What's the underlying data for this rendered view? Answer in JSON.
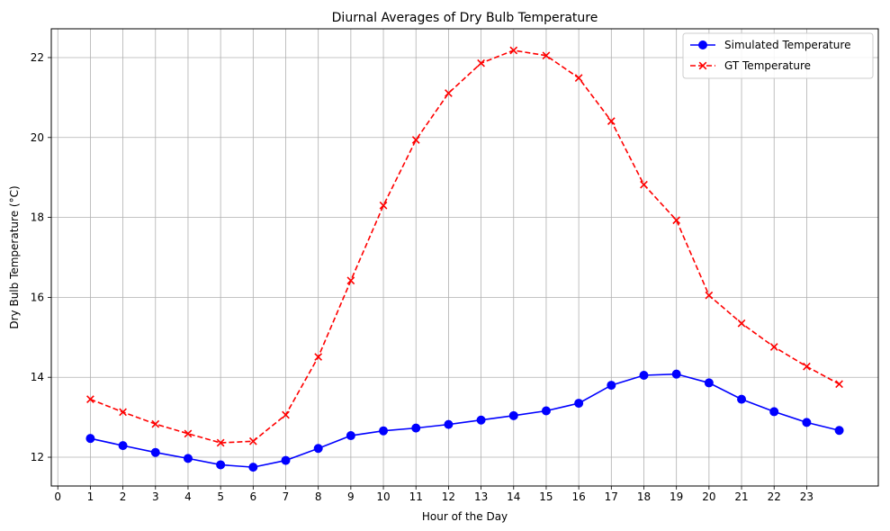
{
  "chart_data": {
    "type": "line",
    "title": "Diurnal Averages of Dry Bulb Temperature",
    "xlabel": "Hour of the Day",
    "ylabel": "Dry Bulb Temperature (°C)",
    "xlim": [
      -0.2,
      25.2
    ],
    "ylim": [
      11.28,
      22.72
    ],
    "xticks": [
      0,
      1,
      2,
      3,
      4,
      5,
      6,
      7,
      8,
      9,
      10,
      11,
      12,
      13,
      14,
      15,
      16,
      17,
      18,
      19,
      20,
      21,
      22,
      23
    ],
    "yticks": [
      12,
      14,
      16,
      18,
      20,
      22
    ],
    "grid": true,
    "legend_position": "top-right",
    "x": [
      1,
      2,
      3,
      4,
      5,
      6,
      7,
      8,
      9,
      10,
      11,
      12,
      13,
      14,
      15,
      16,
      17,
      18,
      19,
      20,
      21,
      22,
      23,
      24
    ],
    "series": [
      {
        "name": "Simulated Temperature",
        "color": "#0000ff",
        "linestyle": "solid",
        "marker": "circle",
        "values": [
          12.47,
          12.29,
          12.12,
          11.97,
          11.81,
          11.75,
          11.92,
          12.22,
          12.54,
          12.66,
          12.73,
          12.82,
          12.93,
          13.04,
          13.16,
          13.35,
          13.8,
          14.05,
          14.08,
          13.86,
          13.45,
          13.14,
          12.87,
          12.67
        ]
      },
      {
        "name": "GT Temperature",
        "color": "#ff0000",
        "linestyle": "dashed",
        "marker": "x",
        "values": [
          13.45,
          13.13,
          12.83,
          12.59,
          12.36,
          12.4,
          13.06,
          14.51,
          16.42,
          18.3,
          19.94,
          21.11,
          21.86,
          22.18,
          22.05,
          21.49,
          20.41,
          18.82,
          17.93,
          16.05,
          15.35,
          14.76,
          14.27,
          13.83
        ]
      }
    ]
  }
}
